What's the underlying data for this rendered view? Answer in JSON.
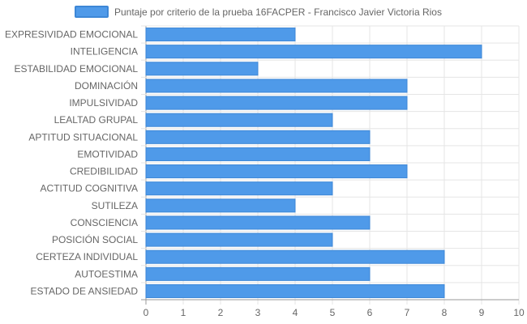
{
  "chart_data": {
    "type": "bar",
    "orientation": "horizontal",
    "categories": [
      "EXPRESIVIDAD EMOCIONAL",
      "INTELIGENCIA",
      "ESTABILIDAD EMOCIONAL",
      "DOMINACIÓN",
      "IMPULSIVIDAD",
      "LEALTAD GRUPAL",
      "APTITUD SITUACIONAL",
      "EMOTIVIDAD",
      "CREDIBILIDAD",
      "ACTITUD COGNITIVA",
      "SUTILEZA",
      "CONSCIENCIA",
      "POSICIÓN SOCIAL",
      "CERTEZA INDIVIDUAL",
      "AUTOESTIMA",
      "ESTADO DE ANSIEDAD"
    ],
    "series": [
      {
        "name": "Puntaje por criterio de la prueba 16FACPER - Francisco Javier Victoria Rios",
        "values": [
          4,
          9,
          3,
          7,
          7,
          5,
          6,
          6,
          7,
          5,
          4,
          6,
          5,
          8,
          6,
          8
        ]
      }
    ],
    "xlim": [
      0,
      10
    ],
    "xticks": [
      "0",
      "1",
      "2",
      "3",
      "4",
      "5",
      "6",
      "7",
      "8",
      "9",
      "10"
    ],
    "grid": true,
    "legend_position": "top",
    "colors": {
      "bar_fill": "#4f9ae9",
      "bar_stroke": "#3d87d6",
      "grid": "#e5e5e5",
      "axis": "#999999"
    }
  }
}
